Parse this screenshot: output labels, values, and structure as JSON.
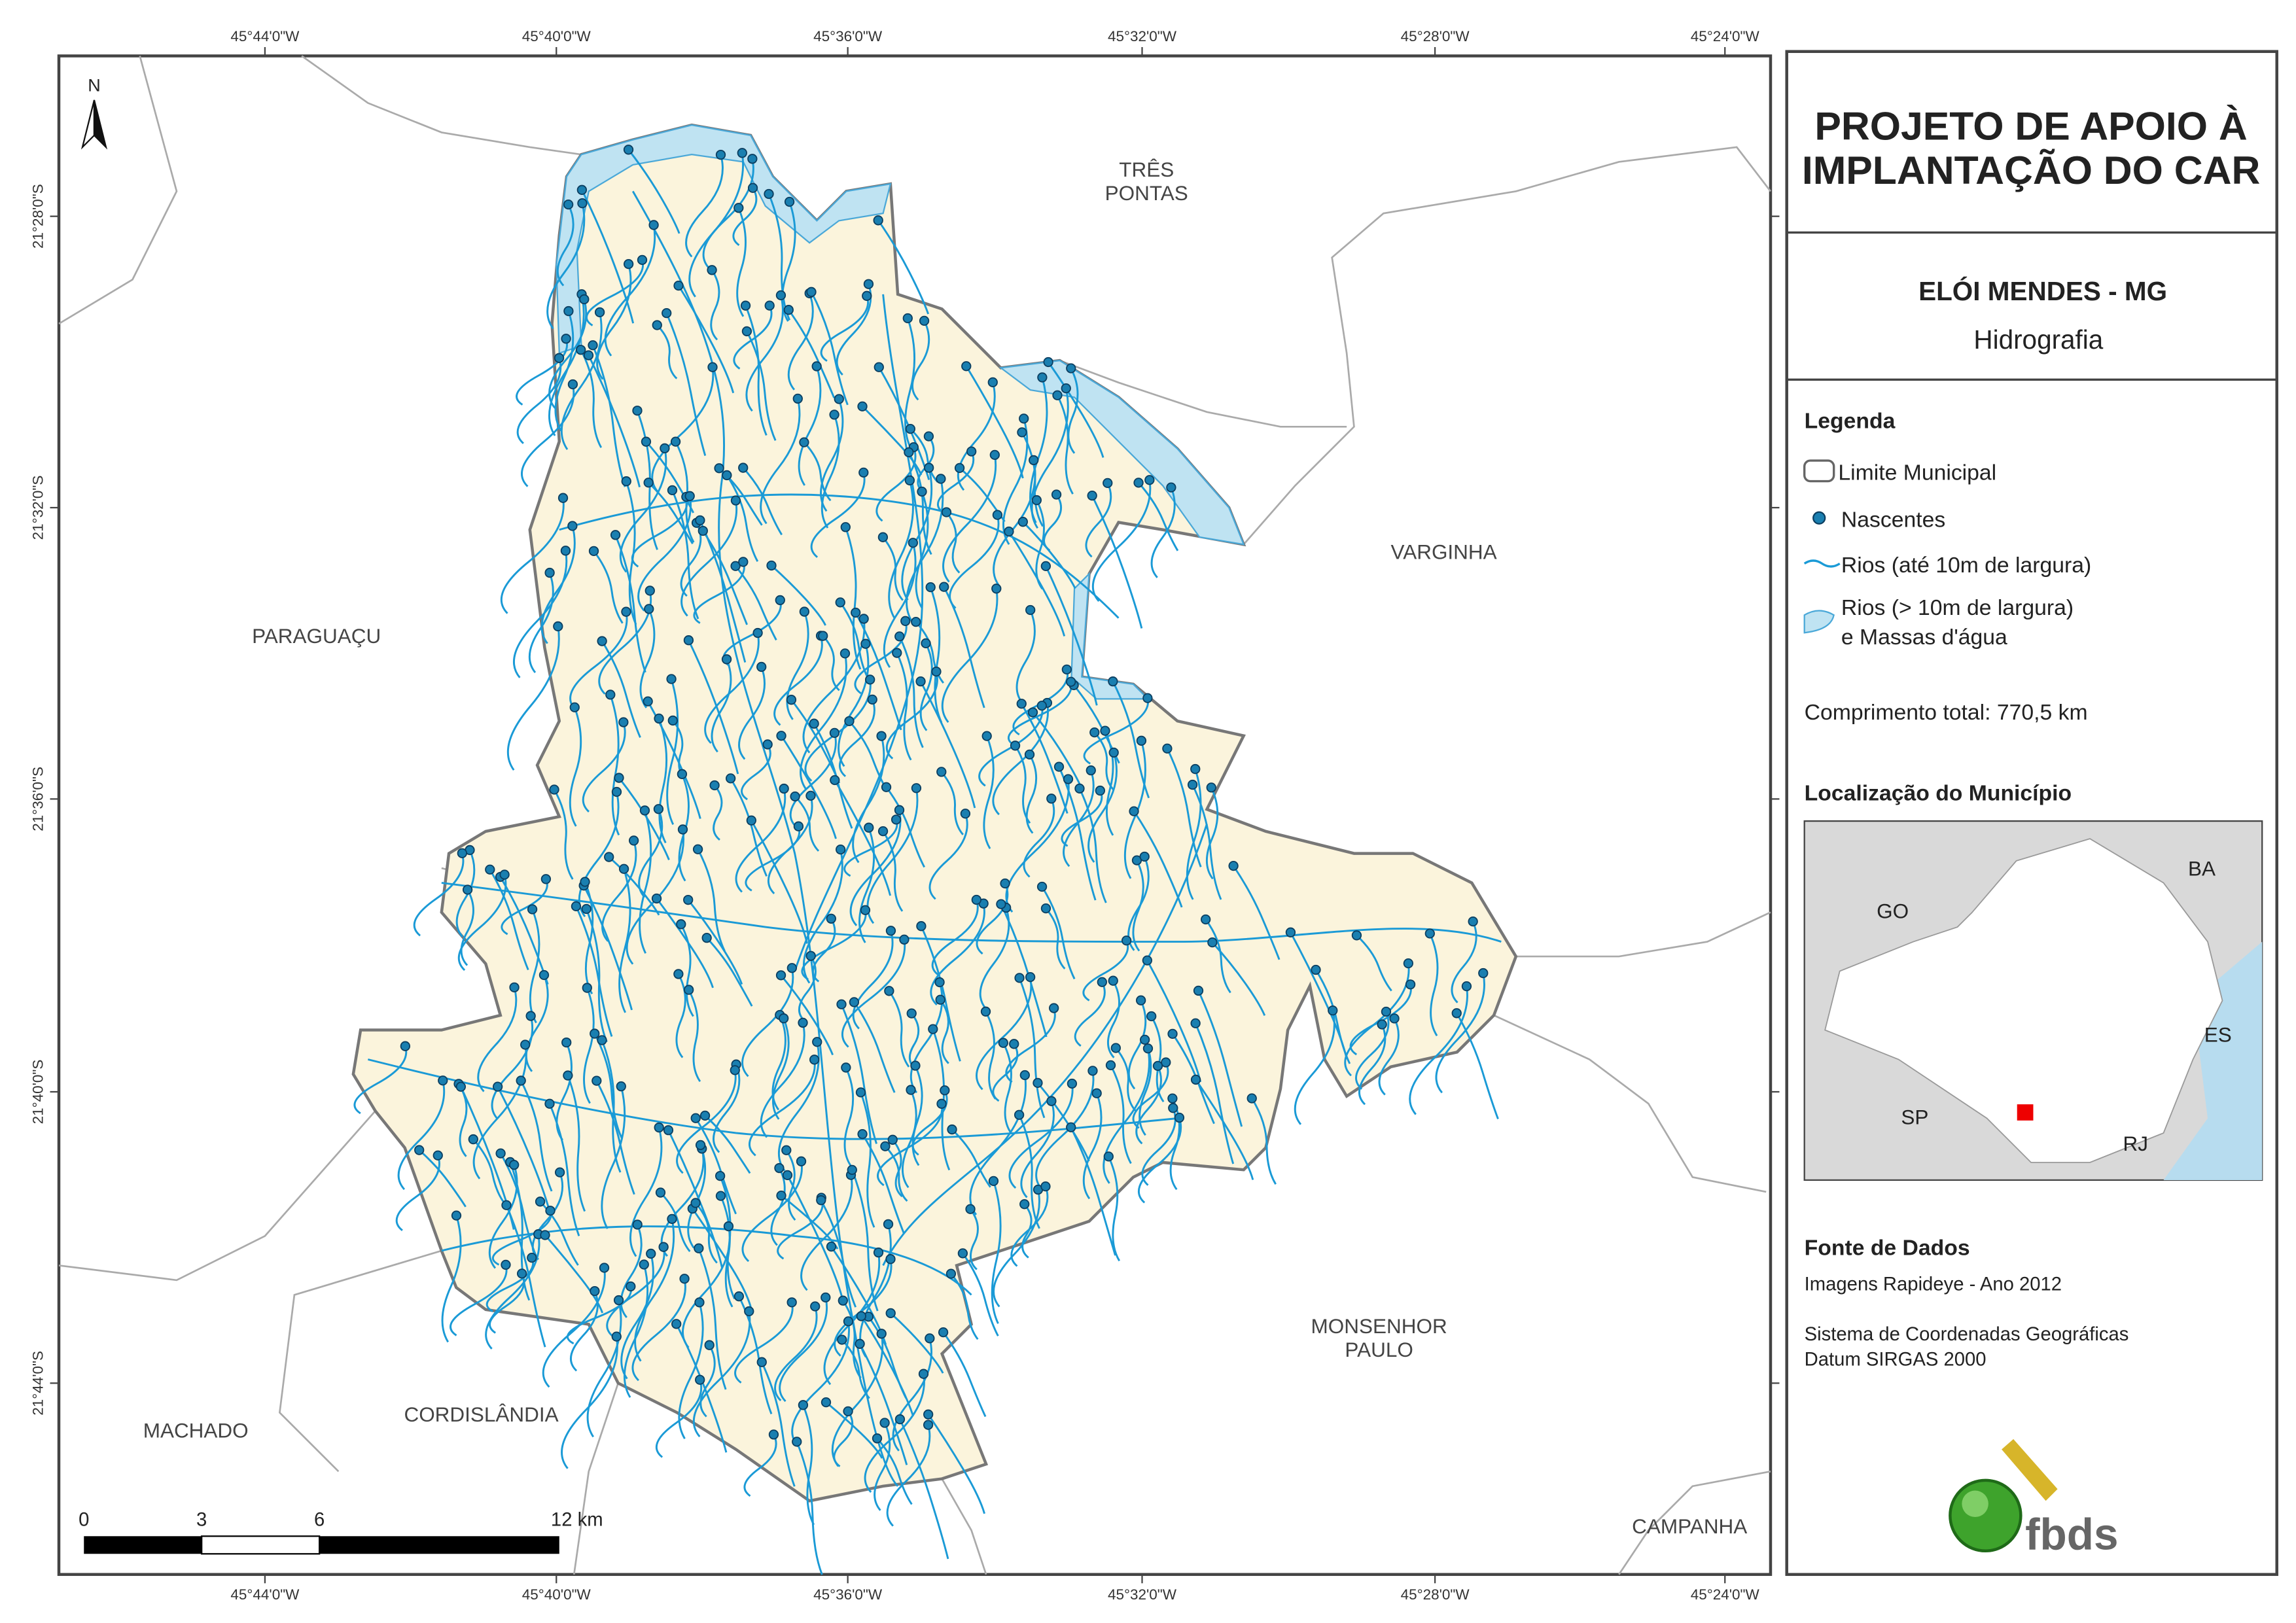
{
  "map": {
    "north_label": "N",
    "longitude_ticks": [
      "45°44'0\"W",
      "45°40'0\"W",
      "45°36'0\"W",
      "45°32'0\"W",
      "45°28'0\"W",
      "45°24'0\"W"
    ],
    "latitude_ticks": [
      "21°28'0\"S",
      "21°32'0\"S",
      "21°36'0\"S",
      "21°40'0\"S",
      "21°44'0\"S"
    ],
    "neighbors": [
      {
        "lines": [
          "TRÊS",
          "PONTAS"
        ]
      },
      {
        "lines": [
          "VARGINHA"
        ]
      },
      {
        "lines": [
          "PARAGUAÇU"
        ]
      },
      {
        "lines": [
          "MONSENHOR",
          "PAULO"
        ]
      },
      {
        "lines": [
          "MACHADO"
        ]
      },
      {
        "lines": [
          "CORDISLÂNDIA"
        ]
      },
      {
        "lines": [
          "CAMPANHA"
        ]
      }
    ],
    "scale_bar": {
      "labels": [
        "0",
        "3",
        "6",
        "12 km"
      ]
    }
  },
  "panel": {
    "title": [
      "PROJETO DE APOIO À",
      "IMPLANTAÇÃO DO CAR"
    ],
    "municipality": "ELÓI MENDES - MG",
    "theme": "Hidrografia",
    "legend": {
      "title": "Legenda",
      "items": [
        {
          "lines": [
            "Limite Municipal"
          ]
        },
        {
          "lines": [
            "Nascentes"
          ]
        },
        {
          "lines": [
            "Rios (até 10m de largura)"
          ]
        },
        {
          "lines": [
            "Rios (> 10m de largura)",
            "e Massas d'água"
          ]
        }
      ]
    },
    "total_length": "Comprimento total: 770,5 km",
    "location_title": "Localização do Município",
    "location_labels": [
      "GO",
      "BA",
      "ES",
      "SP",
      "RJ"
    ],
    "sources_title": "Fonte de Dados",
    "sources": [
      "Imagens Rapideye - Ano 2012",
      "Sistema de Coordenadas Geográficas",
      "Datum SIRGAS 2000"
    ],
    "logo": "fbds"
  }
}
